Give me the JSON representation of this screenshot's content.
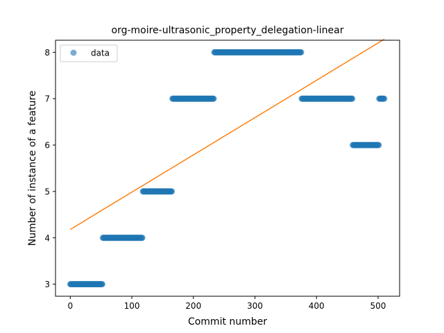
{
  "chart_data": {
    "type": "scatter",
    "title": "org-moire-ultrasonic_property_delegation-linear",
    "xlabel": "Commit number",
    "ylabel": "Number of instance of a feature",
    "xlim": [
      -24,
      535
    ],
    "ylim": [
      2.74,
      8.26
    ],
    "xticks": [
      0,
      100,
      200,
      300,
      400,
      500
    ],
    "yticks": [
      3,
      4,
      5,
      6,
      7,
      8
    ],
    "grid": false,
    "legend": {
      "placement": "top-left",
      "entries": [
        "data"
      ]
    },
    "colors": {
      "scatter": "#1f77b4",
      "fit_line": "#ff7f0e"
    },
    "segments": [
      {
        "x_start": 0,
        "x_end": 52,
        "y": 3
      },
      {
        "x_start": 53,
        "x_end": 117,
        "y": 4
      },
      {
        "x_start": 118,
        "x_end": 165,
        "y": 5
      },
      {
        "x_start": 166,
        "x_end": 233,
        "y": 7
      },
      {
        "x_start": 234,
        "x_end": 375,
        "y": 8
      },
      {
        "x_start": 376,
        "x_end": 458,
        "y": 7
      },
      {
        "x_start": 459,
        "x_end": 501,
        "y": 6
      },
      {
        "x_start": 502,
        "x_end": 510,
        "y": 7
      }
    ],
    "series": [
      {
        "name": "data",
        "kind": "scatter"
      },
      {
        "kind": "line",
        "x": [
          0,
          510
        ],
        "y": [
          4.18,
          8.28
        ]
      }
    ]
  }
}
